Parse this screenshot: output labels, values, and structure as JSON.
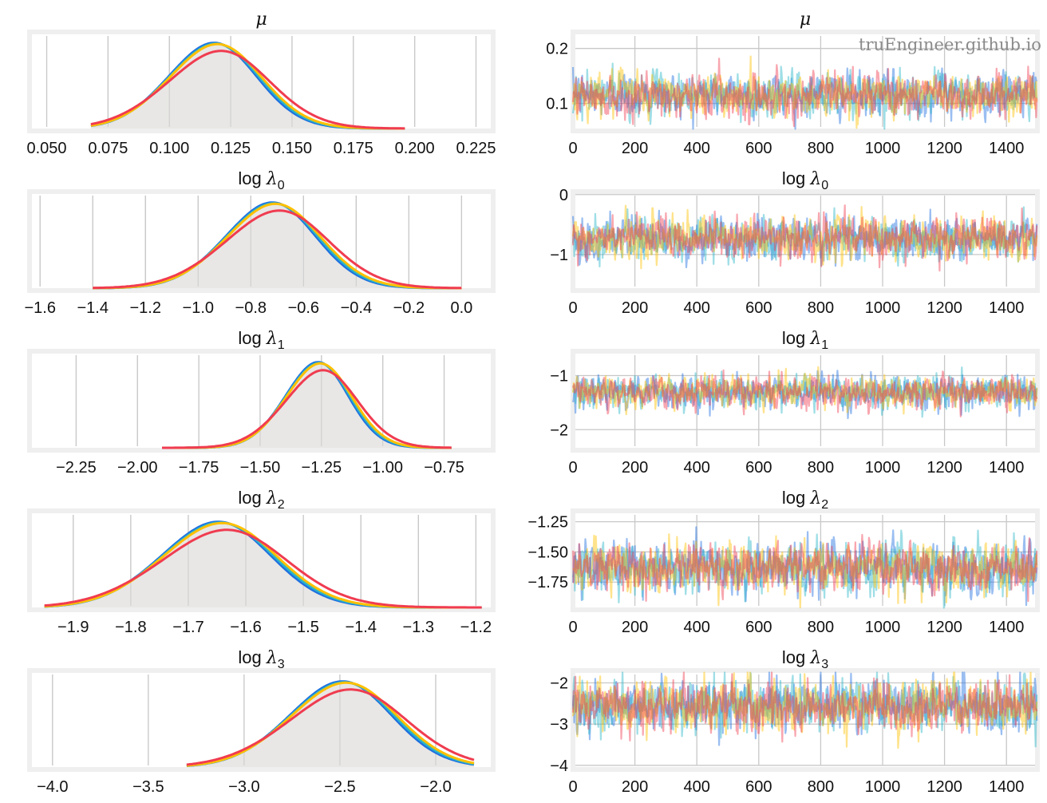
{
  "watermark": "truEngineer.github.io",
  "colors": {
    "chains": [
      "#1f6fe0",
      "#2bb5c8",
      "#ffc000",
      "#f03c50"
    ],
    "trace_alpha": 0.45,
    "density_fill": "#e8e7e5",
    "frame": "#efefef",
    "grid": "#c8c8c8"
  },
  "chart_data": [
    {
      "type": "line",
      "kind": "kde",
      "param": "mu",
      "title": {
        "sym": "μ",
        "sub": ""
      },
      "xlim": [
        0.043,
        0.232
      ],
      "mean": 0.116,
      "sd": 0.019,
      "support": [
        0.068,
        0.196
      ],
      "xticks": [
        0.05,
        0.075,
        0.1,
        0.125,
        0.15,
        0.175,
        0.2,
        0.225
      ],
      "xtick_labels": [
        "0.050",
        "0.075",
        "0.100",
        "0.125",
        "0.150",
        "0.175",
        "0.200",
        "0.225"
      ],
      "chains": [
        "chain 0",
        "chain 1",
        "chain 2",
        "chain 3"
      ]
    },
    {
      "type": "line",
      "kind": "trace",
      "param": "mu",
      "title": {
        "sym": "μ",
        "sub": ""
      },
      "xlim": [
        0,
        1500
      ],
      "ylim": [
        0.05,
        0.23
      ],
      "mean": 0.116,
      "sd": 0.019,
      "draws": 1500,
      "xticks": [
        0,
        200,
        400,
        600,
        800,
        1000,
        1200,
        1400
      ],
      "xtick_labels": [
        "0",
        "200",
        "400",
        "600",
        "800",
        "1000",
        "1200",
        "1400"
      ],
      "yticks": [
        0.1,
        0.2
      ],
      "ytick_labels": [
        "0.1",
        "0.2"
      ]
    },
    {
      "type": "line",
      "kind": "kde",
      "param": "log_lambda_0",
      "title": {
        "sym": "λ",
        "sub": "0"
      },
      "xlim": [
        -1.64,
        0.12
      ],
      "mean": -0.74,
      "sd": 0.18,
      "support": [
        -1.4,
        0.0
      ],
      "xticks": [
        -1.6,
        -1.4,
        -1.2,
        -1.0,
        -0.8,
        -0.6,
        -0.4,
        -0.2,
        0.0
      ],
      "xtick_labels": [
        "−1.6",
        "−1.4",
        "−1.2",
        "−1.0",
        "−0.8",
        "−0.6",
        "−0.4",
        "−0.2",
        "0.0"
      ],
      "chains": [
        "chain 0",
        "chain 1",
        "chain 2",
        "chain 3"
      ]
    },
    {
      "type": "line",
      "kind": "trace",
      "param": "log_lambda_0",
      "title": {
        "sym": "λ",
        "sub": "0"
      },
      "xlim": [
        0,
        1500
      ],
      "ylim": [
        -1.6,
        0.05
      ],
      "mean": -0.73,
      "sd": 0.17,
      "draws": 1500,
      "xticks": [
        0,
        200,
        400,
        600,
        800,
        1000,
        1200,
        1400
      ],
      "xtick_labels": [
        "0",
        "200",
        "400",
        "600",
        "800",
        "1000",
        "1200",
        "1400"
      ],
      "yticks": [
        -1,
        0
      ],
      "ytick_labels": [
        "−1",
        "0"
      ]
    },
    {
      "type": "line",
      "kind": "kde",
      "param": "log_lambda_1",
      "title": {
        "sym": "λ",
        "sub": "1"
      },
      "xlim": [
        -2.44,
        -0.55
      ],
      "mean": -1.28,
      "sd": 0.135,
      "support": [
        -1.9,
        -0.72
      ],
      "xticks": [
        -2.25,
        -2.0,
        -1.75,
        -1.5,
        -1.25,
        -1.0,
        -0.75
      ],
      "xtick_labels": [
        "−2.25",
        "−2.00",
        "−1.75",
        "−1.50",
        "−1.25",
        "−1.00",
        "−0.75"
      ],
      "chains": [
        "chain 0",
        "chain 1",
        "chain 2",
        "chain 3"
      ]
    },
    {
      "type": "line",
      "kind": "trace",
      "param": "log_lambda_1",
      "title": {
        "sym": "λ",
        "sub": "1"
      },
      "xlim": [
        0,
        1500
      ],
      "ylim": [
        -2.38,
        -0.55
      ],
      "mean": -1.3,
      "sd": 0.14,
      "draws": 1500,
      "xticks": [
        0,
        200,
        400,
        600,
        800,
        1000,
        1200,
        1400
      ],
      "xtick_labels": [
        "0",
        "200",
        "400",
        "600",
        "800",
        "1000",
        "1200",
        "1400"
      ],
      "yticks": [
        -2,
        -1
      ],
      "ytick_labels": [
        "−2",
        "−1"
      ]
    },
    {
      "type": "line",
      "kind": "kde",
      "param": "log_lambda_2",
      "title": {
        "sym": "λ",
        "sub": "2"
      },
      "xlim": [
        -1.976,
        -1.17
      ],
      "mean": -1.66,
      "sd": 0.1,
      "support": [
        -1.95,
        -1.19
      ],
      "xticks": [
        -1.9,
        -1.8,
        -1.7,
        -1.6,
        -1.5,
        -1.4,
        -1.3,
        -1.2
      ],
      "xtick_labels": [
        "−1.9",
        "−1.8",
        "−1.7",
        "−1.6",
        "−1.5",
        "−1.4",
        "−1.3",
        "−1.2"
      ],
      "chains": [
        "chain 0",
        "chain 1",
        "chain 2",
        "chain 3"
      ]
    },
    {
      "type": "line",
      "kind": "trace",
      "param": "log_lambda_2",
      "title": {
        "sym": "λ",
        "sub": "2"
      },
      "xlim": [
        0,
        1500
      ],
      "ylim": [
        -1.98,
        -1.16
      ],
      "mean": -1.63,
      "sd": 0.1,
      "draws": 1500,
      "xticks": [
        0,
        200,
        400,
        600,
        800,
        1000,
        1200,
        1400
      ],
      "xtick_labels": [
        "0",
        "200",
        "400",
        "600",
        "800",
        "1000",
        "1200",
        "1400"
      ],
      "yticks": [
        -1.75,
        -1.5,
        -1.25
      ],
      "ytick_labels": [
        "−1.75",
        "−1.50",
        "−1.25"
      ]
    },
    {
      "type": "line",
      "kind": "kde",
      "param": "log_lambda_3",
      "title": {
        "sym": "λ",
        "sub": "3"
      },
      "xlim": [
        -4.12,
        -1.7
      ],
      "mean": -2.52,
      "sd": 0.28,
      "support": [
        -3.3,
        -1.8
      ],
      "xticks": [
        -4.0,
        -3.5,
        -3.0,
        -2.5,
        -2.0
      ],
      "xtick_labels": [
        "−4.0",
        "−3.5",
        "−3.0",
        "−2.5",
        "−2.0"
      ],
      "chains": [
        "chain 0",
        "chain 1",
        "chain 2",
        "chain 3"
      ]
    },
    {
      "type": "line",
      "kind": "trace",
      "param": "log_lambda_3",
      "title": {
        "sym": "λ",
        "sub": "3"
      },
      "xlim": [
        0,
        1500
      ],
      "ylim": [
        -4.1,
        -1.7
      ],
      "mean": -2.55,
      "sd": 0.3,
      "draws": 1500,
      "xticks": [
        0,
        200,
        400,
        600,
        800,
        1000,
        1200,
        1400
      ],
      "xtick_labels": [
        "0",
        "200",
        "400",
        "600",
        "800",
        "1000",
        "1200",
        "1400"
      ],
      "yticks": [
        -4,
        -3,
        -2
      ],
      "ytick_labels": [
        "−4",
        "−3",
        "−2"
      ]
    }
  ]
}
